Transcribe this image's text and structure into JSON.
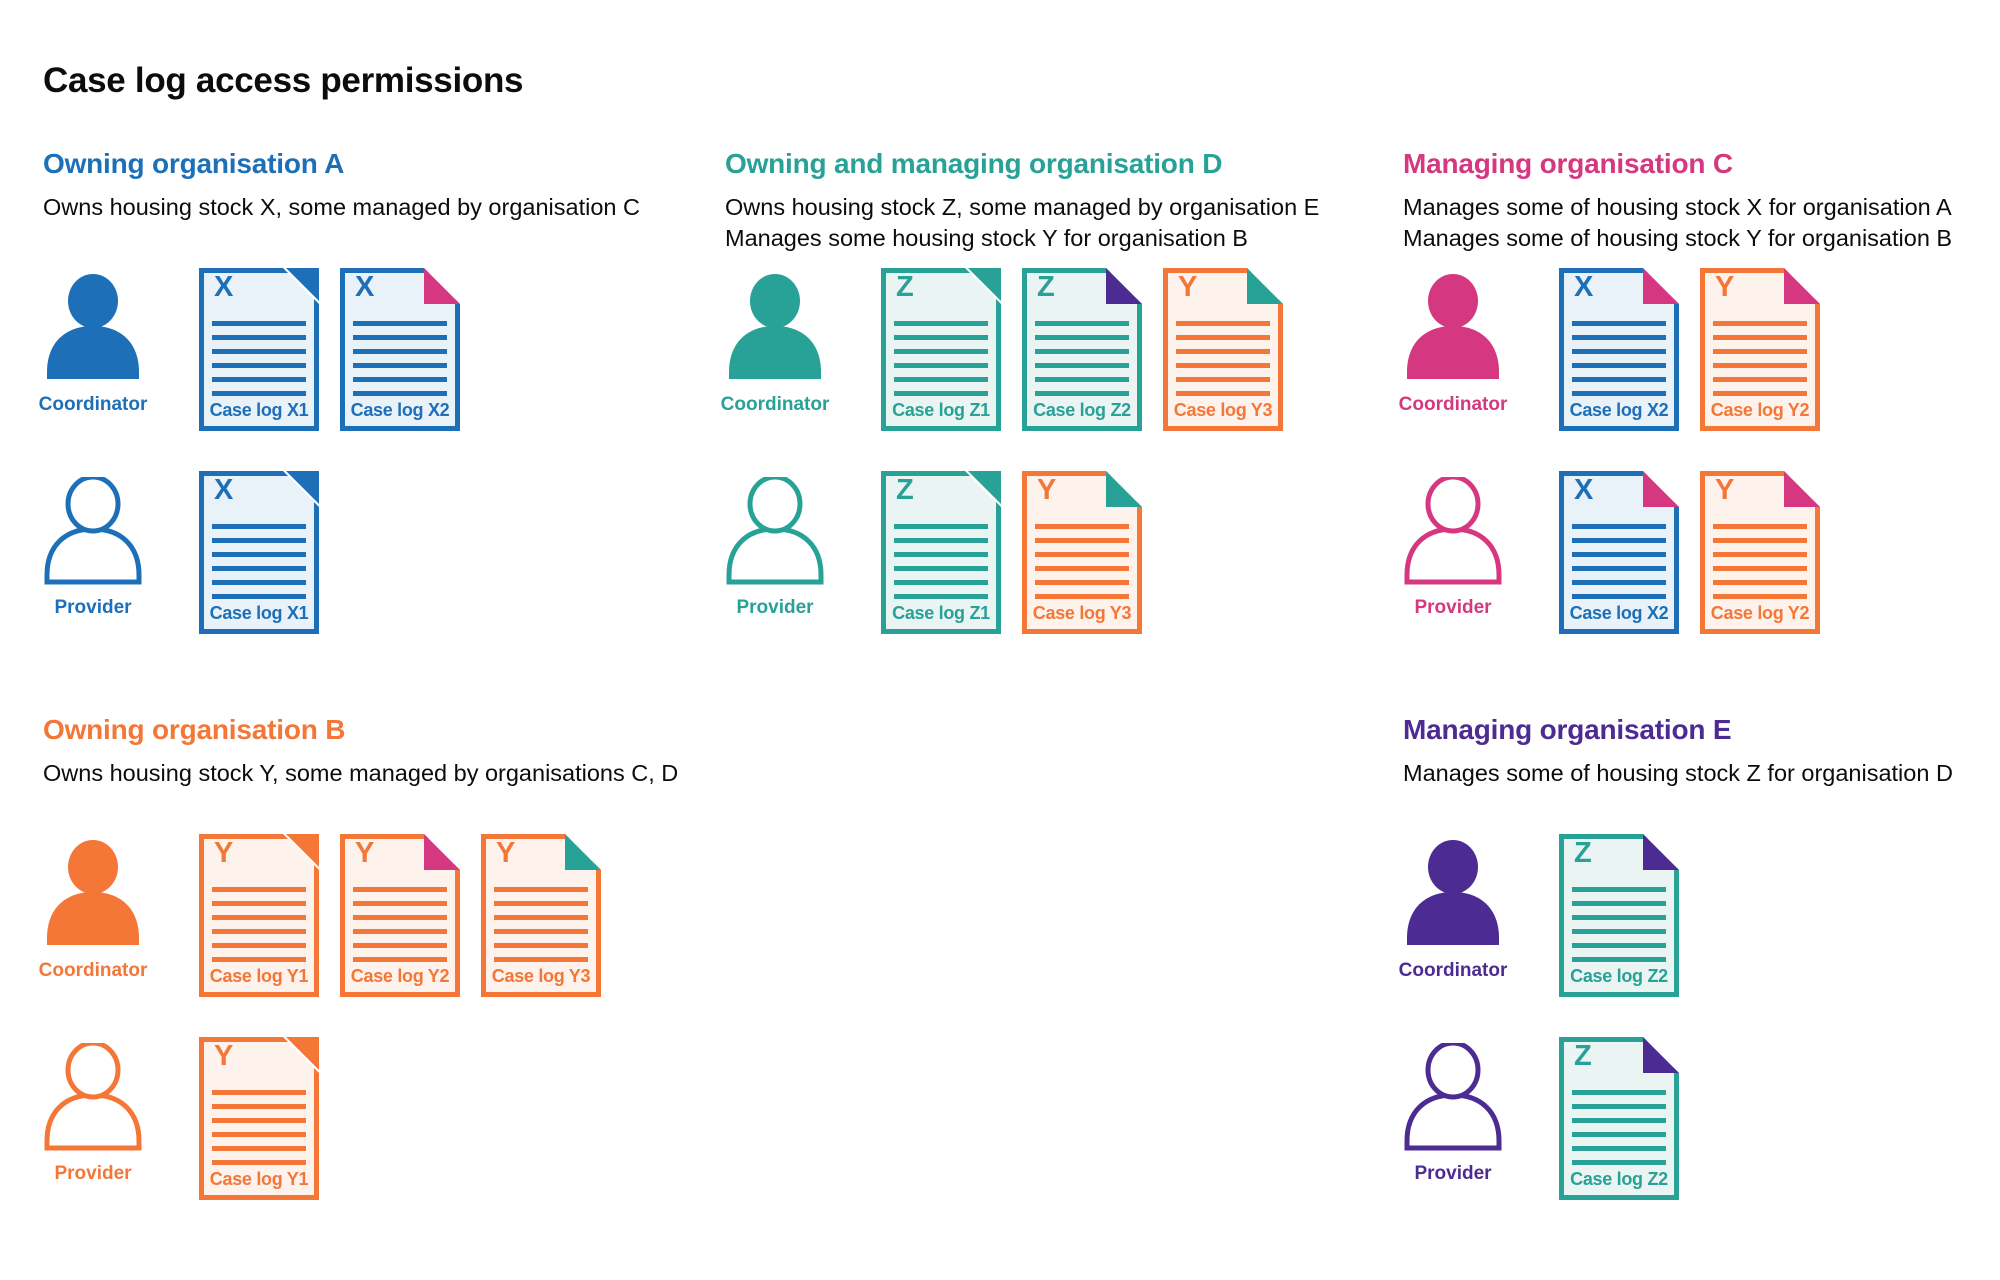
{
  "title": "Case log access permissions",
  "colors": {
    "blue": "#1d70b8",
    "teal": "#28a197",
    "pink": "#d53880",
    "orange": "#f47738",
    "purple": "#4c2c92",
    "text": "#0b0c0c",
    "blue_fill": "#e9f1f9",
    "teal_fill": "#eaf5f3",
    "orange_fill": "#fdf2ec"
  },
  "organisations": [
    {
      "id": "a",
      "title": "Owning organisation A",
      "color": "blue",
      "description": [
        "Owns housing stock X, some managed by organisation C"
      ],
      "rows": [
        {
          "role": "Coordinator",
          "docs": [
            {
              "label": "Case log X1",
              "letter": "X",
              "color": "blue",
              "fold": "blue"
            },
            {
              "label": "Case log X2",
              "letter": "X",
              "color": "blue",
              "fold": "pink"
            }
          ]
        },
        {
          "role": "Provider",
          "docs": [
            {
              "label": "Case log X1",
              "letter": "X",
              "color": "blue",
              "fold": "blue"
            }
          ]
        }
      ]
    },
    {
      "id": "d",
      "title": "Owning and managing organisation D",
      "color": "teal",
      "description": [
        "Owns housing stock Z, some managed by organisation E",
        "Manages some housing stock Y for organisation B"
      ],
      "rows": [
        {
          "role": "Coordinator",
          "docs": [
            {
              "label": "Case log Z1",
              "letter": "Z",
              "color": "teal",
              "fold": "teal"
            },
            {
              "label": "Case log Z2",
              "letter": "Z",
              "color": "teal",
              "fold": "purple"
            },
            {
              "label": "Case log Y3",
              "letter": "Y",
              "color": "orange",
              "fold": "teal"
            }
          ]
        },
        {
          "role": "Provider",
          "docs": [
            {
              "label": "Case log Z1",
              "letter": "Z",
              "color": "teal",
              "fold": "teal"
            },
            {
              "label": "Case log Y3",
              "letter": "Y",
              "color": "orange",
              "fold": "teal"
            }
          ]
        }
      ]
    },
    {
      "id": "c",
      "title": "Managing organisation C",
      "color": "pink",
      "description": [
        "Manages some of housing stock X for organisation A",
        "Manages some of housing stock Y for organisation B"
      ],
      "rows": [
        {
          "role": "Coordinator",
          "docs": [
            {
              "label": "Case log X2",
              "letter": "X",
              "color": "blue",
              "fold": "pink"
            },
            {
              "label": "Case log Y2",
              "letter": "Y",
              "color": "orange",
              "fold": "pink"
            }
          ]
        },
        {
          "role": "Provider",
          "docs": [
            {
              "label": "Case log X2",
              "letter": "X",
              "color": "blue",
              "fold": "pink"
            },
            {
              "label": "Case log Y2",
              "letter": "Y",
              "color": "orange",
              "fold": "pink"
            }
          ]
        }
      ]
    },
    {
      "id": "b",
      "title": "Owning organisation B",
      "color": "orange",
      "description": [
        "Owns housing stock Y, some managed by organisations C, D"
      ],
      "rows": [
        {
          "role": "Coordinator",
          "docs": [
            {
              "label": "Case log Y1",
              "letter": "Y",
              "color": "orange",
              "fold": "orange"
            },
            {
              "label": "Case log Y2",
              "letter": "Y",
              "color": "orange",
              "fold": "pink"
            },
            {
              "label": "Case log Y3",
              "letter": "Y",
              "color": "orange",
              "fold": "teal"
            }
          ]
        },
        {
          "role": "Provider",
          "docs": [
            {
              "label": "Case log Y1",
              "letter": "Y",
              "color": "orange",
              "fold": "orange"
            }
          ]
        }
      ]
    },
    {
      "id": "e",
      "title": "Managing organisation E",
      "color": "purple",
      "description": [
        "Manages some of housing stock Z for organisation D"
      ],
      "rows": [
        {
          "role": "Coordinator",
          "docs": [
            {
              "label": "Case log Z2",
              "letter": "Z",
              "color": "teal",
              "fold": "purple"
            }
          ]
        },
        {
          "role": "Provider",
          "docs": [
            {
              "label": "Case log Z2",
              "letter": "Z",
              "color": "teal",
              "fold": "purple"
            }
          ]
        }
      ]
    }
  ]
}
